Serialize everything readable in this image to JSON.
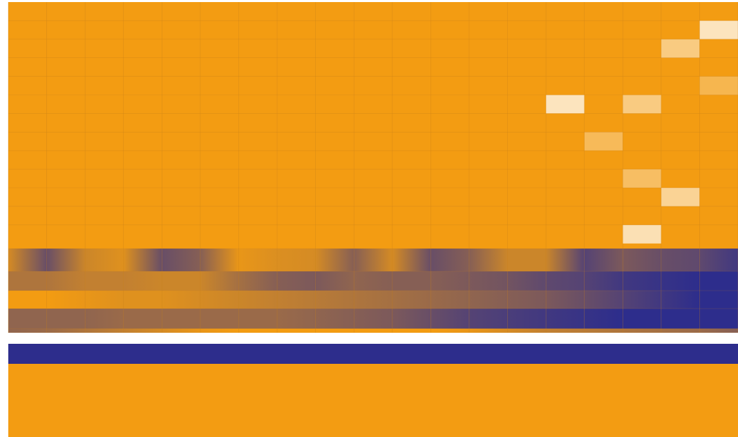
{
  "colors": {
    "low": "#f39c12",
    "high": "#2d2d8c",
    "highlight": "#fdf1dc",
    "grid": "#c8801c",
    "separator": "#ffffff",
    "band": "#2d2d8c",
    "base": "#f39c12"
  },
  "chart_data": {
    "type": "heatmap",
    "title": "",
    "xlabel": "",
    "ylabel": "",
    "n_columns": 19,
    "grid_rows": 13,
    "highlights": [
      {
        "col": 18,
        "row": 1,
        "level": 0.85
      },
      {
        "col": 17,
        "row": 2,
        "level": 0.55
      },
      {
        "col": 18,
        "row": 4,
        "level": 0.3
      },
      {
        "col": 14,
        "row": 5,
        "level": 0.85
      },
      {
        "col": 16,
        "row": 5,
        "level": 0.55
      },
      {
        "col": 15,
        "row": 7,
        "level": 0.35
      },
      {
        "col": 16,
        "row": 9,
        "level": 0.4
      },
      {
        "col": 17,
        "row": 10,
        "level": 0.65
      },
      {
        "col": 16,
        "row": 12,
        "level": 0.8
      }
    ],
    "gradient_rows": [
      {
        "name": "band-1",
        "profile": [
          0.15,
          0.7,
          0.2,
          0.1,
          0.7,
          0.55,
          0.05,
          0.12,
          0.15,
          0.55,
          0.15,
          0.7,
          0.55,
          0.2,
          0.2,
          0.8,
          0.6,
          0.7,
          0.75,
          0.9
        ]
      },
      {
        "name": "band-2",
        "profile": [
          0.35,
          0.35,
          0.25,
          0.25,
          0.2,
          0.2,
          0.4,
          0.55,
          0.6,
          0.5,
          0.55,
          0.55,
          0.6,
          0.65,
          0.75,
          0.8,
          0.9,
          0.95,
          1.0,
          1.0
        ]
      },
      {
        "name": "band-3",
        "profile": [
          0.0,
          0.0,
          0.05,
          0.1,
          0.1,
          0.15,
          0.2,
          0.25,
          0.3,
          0.35,
          0.4,
          0.45,
          0.5,
          0.55,
          0.6,
          0.7,
          0.8,
          0.9,
          1.0,
          1.0
        ]
      },
      {
        "name": "band-4",
        "profile": [
          0.5,
          0.5,
          0.5,
          0.45,
          0.45,
          0.45,
          0.45,
          0.45,
          0.5,
          0.55,
          0.6,
          0.7,
          0.8,
          0.85,
          0.9,
          0.95,
          1.0,
          1.0,
          1.0,
          1.0
        ]
      },
      {
        "name": "band-5",
        "profile": [
          0.5,
          0.45,
          0.35,
          0.25,
          0.15,
          0.05,
          0.0,
          0.0,
          0.0,
          0.0,
          0.0,
          0.0,
          0.05,
          0.15,
          0.25,
          0.3,
          0.35,
          0.4,
          0.45,
          0.55
        ]
      }
    ]
  }
}
